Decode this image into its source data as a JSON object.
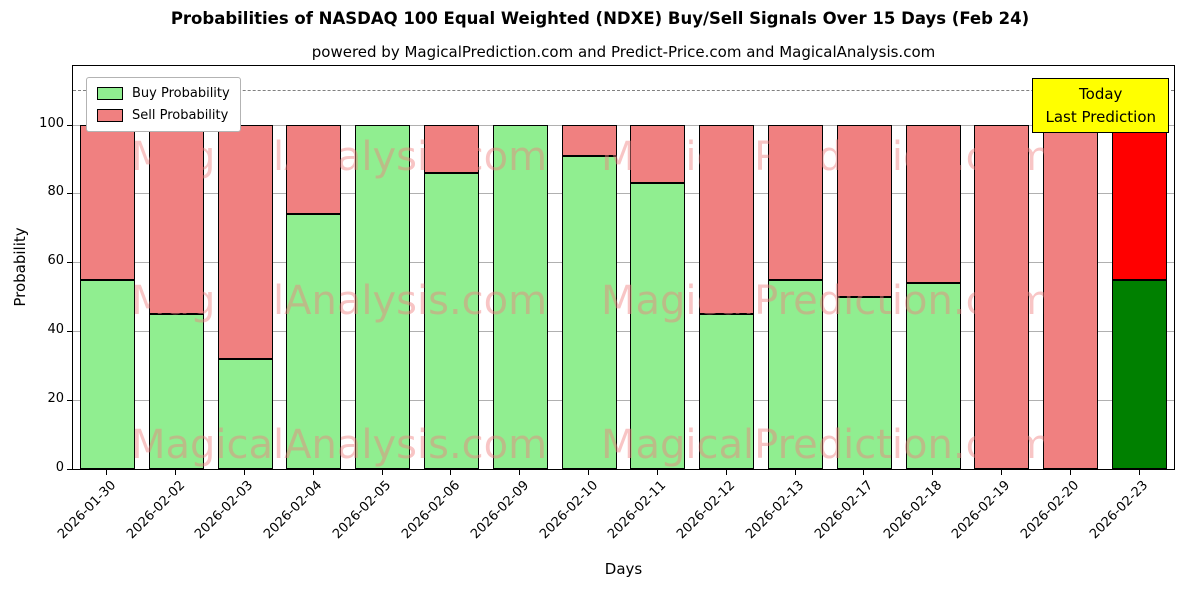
{
  "chart_data": {
    "type": "bar",
    "title": "Probabilities of NASDAQ 100 Equal Weighted (NDXE) Buy/Sell Signals Over 15 Days (Feb 24)",
    "subtitle": "powered by MagicalPrediction.com and Predict-Price.com and MagicalAnalysis.com",
    "xlabel": "Days",
    "ylabel": "Probability",
    "ylim": [
      0,
      117
    ],
    "yticks": [
      0,
      20,
      40,
      60,
      80,
      100
    ],
    "grid": true,
    "dashed_line_y": 110,
    "categories": [
      "2026-01-30",
      "2026-02-02",
      "2026-02-03",
      "2026-02-04",
      "2026-02-05",
      "2026-02-06",
      "2026-02-09",
      "2026-02-10",
      "2026-02-11",
      "2026-02-12",
      "2026-02-13",
      "2026-02-17",
      "2026-02-18",
      "2026-02-19",
      "2026-02-20",
      "2026-02-23"
    ],
    "series": [
      {
        "name": "Buy Probability",
        "values": [
          55,
          45,
          32,
          74,
          100,
          86,
          100,
          91,
          83,
          45,
          55,
          50,
          54,
          0,
          0,
          55
        ]
      },
      {
        "name": "Sell Probability",
        "values": [
          45,
          55,
          68,
          26,
          0,
          14,
          0,
          9,
          17,
          55,
          45,
          50,
          46,
          100,
          100,
          45
        ]
      }
    ],
    "colors": {
      "buy": "#90ee90",
      "sell": "#f08080",
      "last_buy": "#008000",
      "last_sell": "#ff0000",
      "edge": "#000000",
      "grid": "#b0b0b0",
      "dashed_line": "#808080",
      "annotation_bg": "#ffff00"
    },
    "legend": [
      {
        "label": "Buy Probability",
        "color": "#90ee90"
      },
      {
        "label": "Sell Probability",
        "color": "#f08080"
      }
    ],
    "legend_position": "upper left",
    "annotation": {
      "line1": "Today",
      "line2": "Last Prediction"
    },
    "watermarks": [
      "MagicalAnalysis.com",
      "MagicalPrediction.com"
    ]
  }
}
